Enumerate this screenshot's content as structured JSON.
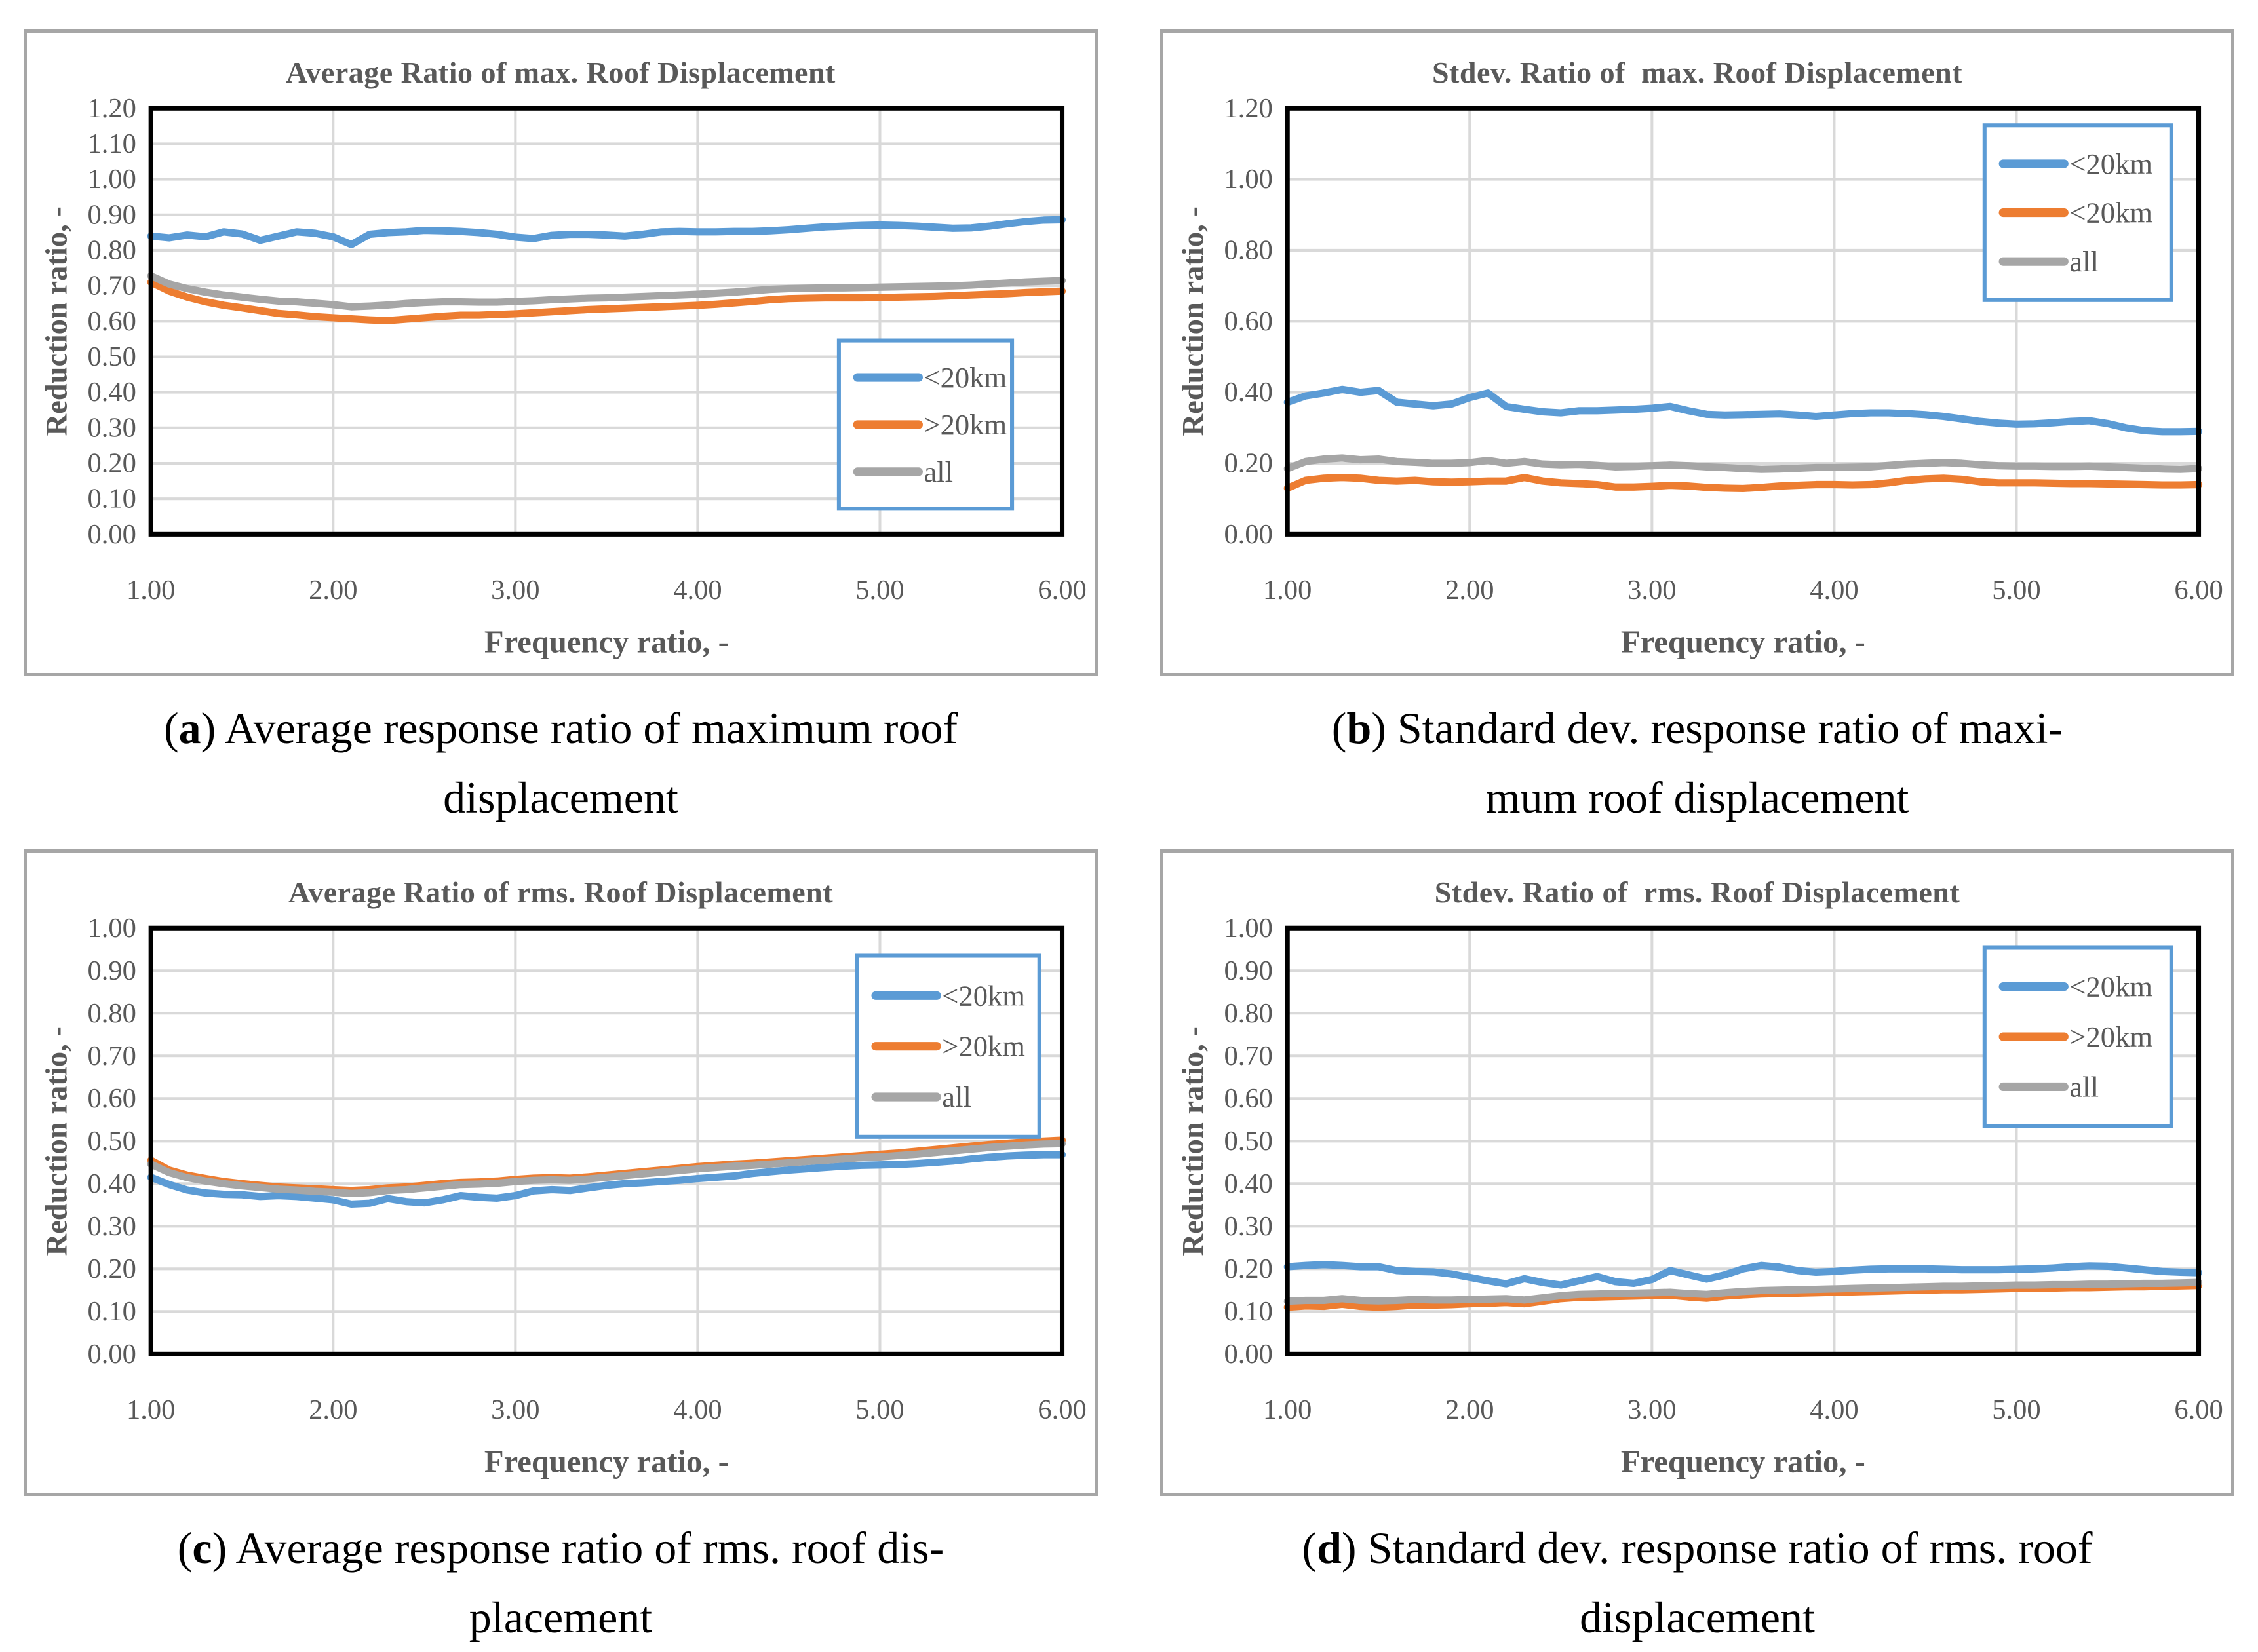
{
  "page": {
    "background": "#ffffff"
  },
  "colors": {
    "blue": "#5B9BD5",
    "orange": "#ED7D31",
    "gray": "#A6A6A6",
    "grid": "#D9D9D9",
    "axis_text": "#595959",
    "title_text": "#595959",
    "plot_border": "#000000",
    "frame_border": "#A6A6A6",
    "legend_border": "#5B9BD5",
    "caption_text": "#000000"
  },
  "chart_data": [
    {
      "id": "a",
      "type": "line",
      "title": "Average Ratio of max. Roof Displacement",
      "xlabel": "Frequency ratio, -",
      "ylabel": "Reduction ratio, -",
      "xlim": [
        1,
        6
      ],
      "ylim": [
        0,
        1.2
      ],
      "ytick_step": 0.1,
      "xticks": [
        1,
        2,
        3,
        4,
        5,
        6
      ],
      "grid": true,
      "legend": {
        "position": "right-middle",
        "x0": 0.755,
        "y0": 0.545,
        "w": 0.19,
        "h": 0.395,
        "entries": [
          "<20km",
          ">20km",
          "all"
        ]
      },
      "x_start": 1.0,
      "x_step": 0.1,
      "series": [
        {
          "name": "<20km",
          "color_key": "blue",
          "values": [
            0.84,
            0.835,
            0.843,
            0.838,
            0.852,
            0.846,
            0.828,
            0.84,
            0.852,
            0.848,
            0.838,
            0.816,
            0.845,
            0.85,
            0.852,
            0.856,
            0.855,
            0.853,
            0.85,
            0.845,
            0.837,
            0.833,
            0.842,
            0.845,
            0.845,
            0.843,
            0.84,
            0.845,
            0.852,
            0.853,
            0.852,
            0.852,
            0.853,
            0.853,
            0.855,
            0.858,
            0.862,
            0.866,
            0.868,
            0.87,
            0.871,
            0.87,
            0.868,
            0.865,
            0.862,
            0.863,
            0.868,
            0.875,
            0.881,
            0.885,
            0.886
          ]
        },
        {
          "name": ">20km",
          "color_key": "orange",
          "values": [
            0.71,
            0.685,
            0.668,
            0.655,
            0.645,
            0.638,
            0.63,
            0.622,
            0.618,
            0.613,
            0.61,
            0.607,
            0.604,
            0.602,
            0.606,
            0.61,
            0.614,
            0.617,
            0.617,
            0.619,
            0.621,
            0.624,
            0.627,
            0.63,
            0.633,
            0.635,
            0.637,
            0.639,
            0.641,
            0.643,
            0.645,
            0.648,
            0.652,
            0.656,
            0.661,
            0.664,
            0.665,
            0.666,
            0.666,
            0.666,
            0.667,
            0.668,
            0.669,
            0.67,
            0.672,
            0.674,
            0.676,
            0.678,
            0.681,
            0.683,
            0.685
          ]
        },
        {
          "name": "all",
          "color_key": "gray",
          "values": [
            0.728,
            0.705,
            0.692,
            0.682,
            0.674,
            0.668,
            0.662,
            0.657,
            0.655,
            0.651,
            0.647,
            0.641,
            0.643,
            0.646,
            0.65,
            0.653,
            0.655,
            0.655,
            0.654,
            0.654,
            0.656,
            0.658,
            0.661,
            0.663,
            0.665,
            0.666,
            0.668,
            0.67,
            0.672,
            0.674,
            0.676,
            0.679,
            0.682,
            0.686,
            0.69,
            0.692,
            0.693,
            0.694,
            0.694,
            0.695,
            0.696,
            0.697,
            0.698,
            0.699,
            0.7,
            0.702,
            0.705,
            0.708,
            0.711,
            0.713,
            0.715
          ]
        }
      ],
      "caption": {
        "open": "(",
        "tag": "a",
        "close": ")",
        "line1": " Average response ratio of maximum roof",
        "line2": "displacement"
      }
    },
    {
      "id": "b",
      "type": "line",
      "title": "Stdev. Ratio of  max. Roof Displacement",
      "xlabel": "Frequency ratio, -",
      "ylabel": "Reduction ratio, -",
      "xlim": [
        1,
        6
      ],
      "ylim": [
        0,
        1.2
      ],
      "ytick_step": 0.2,
      "xticks": [
        1,
        2,
        3,
        4,
        5,
        6
      ],
      "grid": true,
      "legend": {
        "position": "right-top",
        "x0": 0.765,
        "y0": 0.04,
        "w": 0.205,
        "h": 0.41,
        "entries": [
          "<20km",
          "<20km",
          "all"
        ]
      },
      "x_start": 1.0,
      "x_step": 0.1,
      "series": [
        {
          "name": "<20km",
          "color_key": "blue",
          "values": [
            0.372,
            0.39,
            0.398,
            0.408,
            0.4,
            0.405,
            0.372,
            0.367,
            0.362,
            0.367,
            0.385,
            0.398,
            0.36,
            0.352,
            0.345,
            0.342,
            0.348,
            0.348,
            0.35,
            0.352,
            0.355,
            0.36,
            0.348,
            0.338,
            0.336,
            0.337,
            0.338,
            0.339,
            0.336,
            0.332,
            0.336,
            0.34,
            0.342,
            0.342,
            0.34,
            0.337,
            0.332,
            0.325,
            0.318,
            0.313,
            0.31,
            0.311,
            0.314,
            0.318,
            0.32,
            0.312,
            0.3,
            0.292,
            0.289,
            0.289,
            0.29
          ]
        },
        {
          "name": "<20km",
          "color_key": "orange",
          "values": [
            0.13,
            0.152,
            0.158,
            0.16,
            0.158,
            0.152,
            0.15,
            0.152,
            0.148,
            0.147,
            0.148,
            0.15,
            0.15,
            0.16,
            0.15,
            0.145,
            0.143,
            0.14,
            0.133,
            0.133,
            0.135,
            0.138,
            0.136,
            0.132,
            0.13,
            0.129,
            0.132,
            0.136,
            0.138,
            0.14,
            0.14,
            0.139,
            0.14,
            0.145,
            0.152,
            0.156,
            0.158,
            0.155,
            0.148,
            0.145,
            0.145,
            0.145,
            0.144,
            0.143,
            0.143,
            0.142,
            0.141,
            0.14,
            0.139,
            0.139,
            0.14
          ]
        },
        {
          "name": "all",
          "color_key": "gray",
          "values": [
            0.185,
            0.205,
            0.212,
            0.215,
            0.21,
            0.212,
            0.205,
            0.203,
            0.2,
            0.2,
            0.202,
            0.208,
            0.2,
            0.205,
            0.198,
            0.196,
            0.197,
            0.194,
            0.19,
            0.191,
            0.193,
            0.195,
            0.193,
            0.19,
            0.188,
            0.185,
            0.183,
            0.184,
            0.186,
            0.188,
            0.188,
            0.189,
            0.19,
            0.194,
            0.198,
            0.2,
            0.202,
            0.2,
            0.196,
            0.193,
            0.192,
            0.192,
            0.191,
            0.191,
            0.192,
            0.19,
            0.188,
            0.186,
            0.184,
            0.183,
            0.185
          ]
        }
      ],
      "caption": {
        "open": "(",
        "tag": "b",
        "close": ")",
        "line1": " Standard dev. response ratio of maxi-",
        "line2": "mum roof displacement"
      }
    },
    {
      "id": "c",
      "type": "line",
      "title": "Average Ratio of rms. Roof Displacement",
      "xlabel": "Frequency ratio, -",
      "ylabel": "Reduction ratio, -",
      "xlim": [
        1,
        6
      ],
      "ylim": [
        0,
        1.0
      ],
      "ytick_step": 0.1,
      "xticks": [
        1,
        2,
        3,
        4,
        5,
        6
      ],
      "grid": true,
      "legend": {
        "position": "right-top",
        "x0": 0.775,
        "y0": 0.065,
        "w": 0.2,
        "h": 0.425,
        "entries": [
          "<20km",
          ">20km",
          "all"
        ]
      },
      "x_start": 1.0,
      "x_step": 0.1,
      "series": [
        {
          "name": "<20km",
          "color_key": "blue",
          "values": [
            0.415,
            0.398,
            0.385,
            0.378,
            0.375,
            0.374,
            0.37,
            0.372,
            0.37,
            0.366,
            0.362,
            0.352,
            0.354,
            0.365,
            0.358,
            0.355,
            0.362,
            0.372,
            0.368,
            0.366,
            0.372,
            0.383,
            0.386,
            0.384,
            0.39,
            0.396,
            0.4,
            0.402,
            0.405,
            0.408,
            0.412,
            0.415,
            0.418,
            0.424,
            0.428,
            0.432,
            0.435,
            0.438,
            0.441,
            0.443,
            0.444,
            0.445,
            0.447,
            0.45,
            0.453,
            0.458,
            0.462,
            0.465,
            0.467,
            0.468,
            0.468
          ]
        },
        {
          "name": ">20km",
          "color_key": "orange",
          "values": [
            0.455,
            0.432,
            0.42,
            0.412,
            0.405,
            0.4,
            0.396,
            0.392,
            0.39,
            0.388,
            0.386,
            0.384,
            0.386,
            0.39,
            0.392,
            0.396,
            0.4,
            0.403,
            0.404,
            0.406,
            0.41,
            0.413,
            0.414,
            0.413,
            0.416,
            0.42,
            0.424,
            0.428,
            0.432,
            0.436,
            0.44,
            0.443,
            0.446,
            0.448,
            0.451,
            0.454,
            0.457,
            0.46,
            0.463,
            0.466,
            0.469,
            0.472,
            0.476,
            0.48,
            0.484,
            0.488,
            0.492,
            0.495,
            0.498,
            0.5,
            0.502
          ]
        },
        {
          "name": "all",
          "color_key": "gray",
          "values": [
            0.446,
            0.426,
            0.414,
            0.406,
            0.4,
            0.395,
            0.391,
            0.387,
            0.385,
            0.382,
            0.38,
            0.377,
            0.379,
            0.384,
            0.386,
            0.39,
            0.394,
            0.398,
            0.399,
            0.401,
            0.405,
            0.408,
            0.409,
            0.408,
            0.411,
            0.415,
            0.419,
            0.423,
            0.427,
            0.431,
            0.435,
            0.438,
            0.441,
            0.443,
            0.446,
            0.449,
            0.452,
            0.455,
            0.458,
            0.461,
            0.463,
            0.466,
            0.469,
            0.473,
            0.477,
            0.481,
            0.485,
            0.488,
            0.491,
            0.493,
            0.494
          ]
        }
      ],
      "caption": {
        "open": "(",
        "tag": "c",
        "close": ")",
        "line1": " Average response ratio of rms. roof dis-",
        "line2": "placement"
      }
    },
    {
      "id": "d",
      "type": "line",
      "title": "Stdev. Ratio of  rms. Roof Displacement",
      "xlabel": "Frequency ratio, -",
      "ylabel": "Reduction ratio, -",
      "xlim": [
        1,
        6
      ],
      "ylim": [
        0,
        1.0
      ],
      "ytick_step": 0.1,
      "xticks": [
        1,
        2,
        3,
        4,
        5,
        6
      ],
      "grid": true,
      "legend": {
        "position": "right-top",
        "x0": 0.765,
        "y0": 0.045,
        "w": 0.205,
        "h": 0.42,
        "entries": [
          "<20km",
          ">20km",
          "all"
        ]
      },
      "x_start": 1.0,
      "x_step": 0.1,
      "series": [
        {
          "name": "<20km",
          "color_key": "blue",
          "values": [
            0.205,
            0.208,
            0.21,
            0.208,
            0.205,
            0.205,
            0.196,
            0.194,
            0.193,
            0.188,
            0.18,
            0.172,
            0.165,
            0.177,
            0.168,
            0.162,
            0.172,
            0.182,
            0.17,
            0.166,
            0.175,
            0.196,
            0.186,
            0.176,
            0.186,
            0.2,
            0.208,
            0.204,
            0.196,
            0.192,
            0.194,
            0.197,
            0.199,
            0.2,
            0.2,
            0.2,
            0.199,
            0.198,
            0.198,
            0.198,
            0.199,
            0.2,
            0.202,
            0.205,
            0.207,
            0.206,
            0.202,
            0.198,
            0.194,
            0.192,
            0.191
          ]
        },
        {
          "name": ">20km",
          "color_key": "orange",
          "values": [
            0.11,
            0.113,
            0.112,
            0.117,
            0.112,
            0.11,
            0.112,
            0.115,
            0.115,
            0.116,
            0.118,
            0.119,
            0.121,
            0.118,
            0.124,
            0.13,
            0.133,
            0.134,
            0.135,
            0.136,
            0.137,
            0.138,
            0.134,
            0.131,
            0.136,
            0.139,
            0.141,
            0.142,
            0.143,
            0.144,
            0.145,
            0.146,
            0.147,
            0.148,
            0.149,
            0.15,
            0.151,
            0.151,
            0.152,
            0.153,
            0.154,
            0.154,
            0.155,
            0.156,
            0.156,
            0.157,
            0.158,
            0.158,
            0.159,
            0.16,
            0.161
          ]
        },
        {
          "name": "all",
          "color_key": "gray",
          "values": [
            0.124,
            0.126,
            0.126,
            0.13,
            0.126,
            0.125,
            0.126,
            0.128,
            0.127,
            0.127,
            0.128,
            0.129,
            0.13,
            0.127,
            0.132,
            0.137,
            0.14,
            0.141,
            0.142,
            0.143,
            0.144,
            0.145,
            0.142,
            0.14,
            0.144,
            0.147,
            0.149,
            0.15,
            0.151,
            0.152,
            0.153,
            0.154,
            0.155,
            0.156,
            0.157,
            0.158,
            0.159,
            0.159,
            0.16,
            0.161,
            0.162,
            0.162,
            0.163,
            0.163,
            0.164,
            0.164,
            0.165,
            0.166,
            0.166,
            0.167,
            0.168
          ]
        }
      ],
      "caption": {
        "open": "(",
        "tag": "d",
        "close": ")",
        "line1": " Standard dev. response ratio of rms. roof",
        "line2": "displacement"
      }
    }
  ]
}
